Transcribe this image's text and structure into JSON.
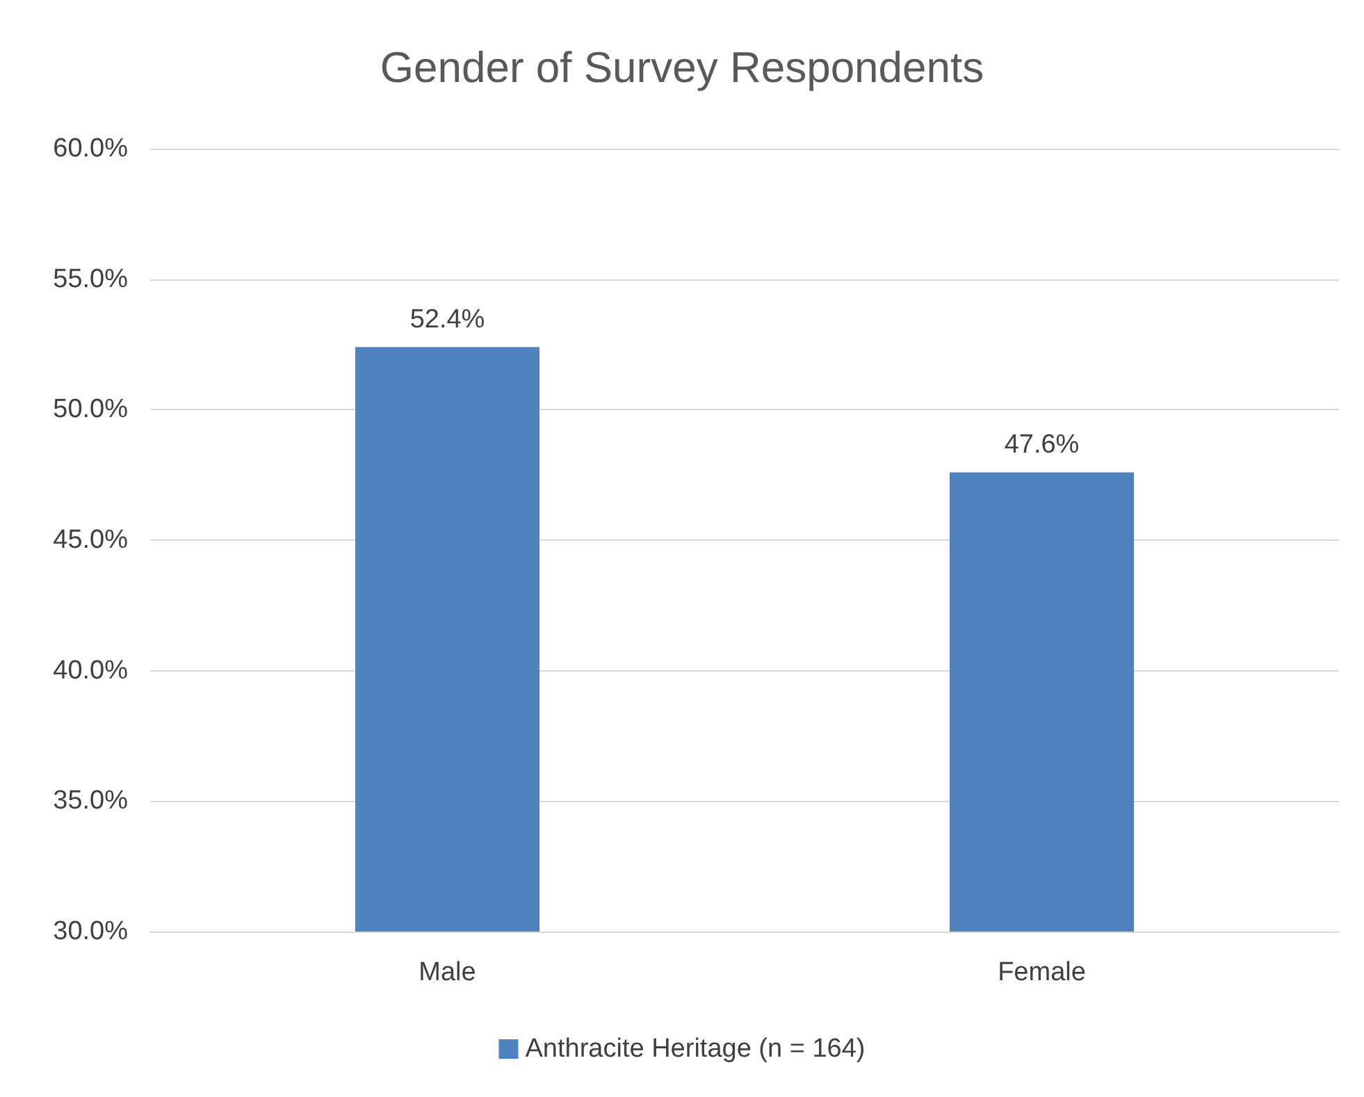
{
  "chart_data": {
    "type": "bar",
    "title": "Gender of Survey Respondents",
    "categories": [
      "Male",
      "Female"
    ],
    "series": [
      {
        "name": "Anthracite Heritage (n = 164)",
        "color": "#4f81bd",
        "values": [
          52.4,
          47.6
        ],
        "value_labels": [
          "52.4%",
          "47.6%"
        ]
      }
    ],
    "ylim": [
      30,
      60
    ],
    "yticks": [
      {
        "value": 30,
        "label": "30.0%"
      },
      {
        "value": 35,
        "label": "35.0%"
      },
      {
        "value": 40,
        "label": "40.0%"
      },
      {
        "value": 45,
        "label": "45.0%"
      },
      {
        "value": 50,
        "label": "50.0%"
      },
      {
        "value": 55,
        "label": "55.0%"
      },
      {
        "value": 60,
        "label": "60.0%"
      }
    ],
    "grid": "y",
    "legend": "bottom"
  }
}
